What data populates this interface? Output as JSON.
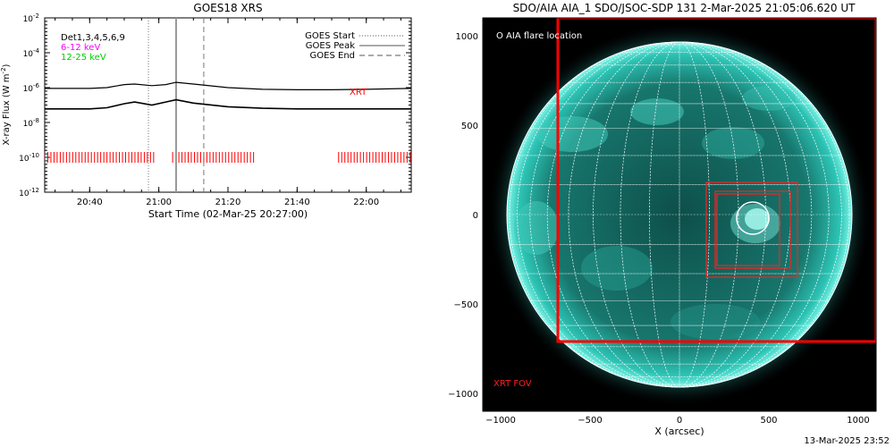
{
  "left_panel": {
    "title": "GOES18 XRS",
    "ylabel_main": "X-ray Flux (W m",
    "ylabel_sup": "-2",
    "ylabel_end": ")",
    "xlabel": "Start Time (02-Mar-25 20:27:00)",
    "legend_left": [
      {
        "text": "Det1,3,4,5,6,9",
        "color": "#000000"
      },
      {
        "text": "6-12 keV",
        "color": "#ff00ff"
      },
      {
        "text": "12-25 keV",
        "color": "#00dd00"
      }
    ],
    "legend_right": [
      {
        "text": "GOES Start",
        "style": "dotted"
      },
      {
        "text": "GOES Peak",
        "style": "solid"
      },
      {
        "text": "GOES End",
        "style": "dashed"
      }
    ],
    "xrt_label": "XRT"
  },
  "right_panel": {
    "title": "SDO/AIA AIA_1 SDO/JSOC-SDP 131  2-Mar-2025 21:05:06.620 UT",
    "flare_legend": "O AIA flare location",
    "xrt_fov_label": "XRT FOV",
    "xlabel": "X (arcsec)",
    "footer": "13-Mar-2025 23:52",
    "accent_color": "#ff0000",
    "disk_color": "#1fa89c"
  },
  "chart_data": [
    {
      "type": "line",
      "title": "GOES18 XRS",
      "xlabel": "Start Time (02-Mar-25 20:27:00)",
      "ylabel": "X-ray Flux (W m^-2)",
      "y_scale": "log",
      "x_tick_labels": [
        "20:40",
        "21:00",
        "21:20",
        "21:40",
        "22:00"
      ],
      "y_tick_labels": [
        "10^-2",
        "10^-4",
        "10^-6",
        "10^-8",
        "10^-10",
        "10^-12"
      ],
      "xlim": [
        "20:27",
        "22:13"
      ],
      "ylim": [
        1e-12,
        0.01
      ],
      "series": [
        {
          "name": "Det1,3,4,5,6,9",
          "x": [
            "20:27",
            "20:40",
            "20:45",
            "20:50",
            "20:53",
            "20:58",
            "21:02",
            "21:05",
            "21:10",
            "21:20",
            "21:30",
            "21:40",
            "21:50",
            "22:00",
            "22:13"
          ],
          "values": [
            9e-07,
            9e-07,
            1e-06,
            1.5e-06,
            1.6e-06,
            1.3e-06,
            1.5e-06,
            2e-06,
            1.6e-06,
            1e-06,
            8e-07,
            7.5e-07,
            7.5e-07,
            8e-07,
            9e-07
          ]
        },
        {
          "x": [
            "20:27",
            "20:40",
            "20:45",
            "20:50",
            "20:53",
            "20:58",
            "21:02",
            "21:05",
            "21:10",
            "21:20",
            "21:30",
            "21:40",
            "21:50",
            "22:00",
            "22:13"
          ],
          "values": [
            6e-08,
            6e-08,
            7e-08,
            1.2e-07,
            1.5e-07,
            1e-07,
            1.5e-07,
            2e-07,
            1.3e-07,
            8e-08,
            6.5e-08,
            6e-08,
            6e-08,
            6e-08,
            6e-08
          ]
        }
      ],
      "markers": {
        "goes_start": "20:57",
        "goes_peak": "21:05",
        "goes_end": "21:13"
      },
      "xrt_coverage": [
        [
          "20:27",
          "20:59"
        ],
        [
          "21:04",
          "21:28"
        ],
        [
          "21:52",
          "22:13"
        ]
      ],
      "xrt_level": 1e-10,
      "grid": false,
      "legend": "top"
    },
    {
      "type": "scatter",
      "title": "SDO/AIA AIA_1 SDO/JSOC-SDP 131  2-Mar-2025 21:05:06.620 UT",
      "xlabel": "X (arcsec)",
      "ylabel": "",
      "x_tick_labels": [
        "-1000",
        "-500",
        "0",
        "500",
        "1000"
      ],
      "y_tick_labels": [
        "1000",
        "500",
        "0",
        "-500",
        "-1000"
      ],
      "xlim": [
        -1100,
        1100
      ],
      "ylim": [
        -1100,
        1100
      ],
      "solar_radius": 965,
      "flare_location": {
        "x": 410,
        "y": -20,
        "r": 90
      },
      "xrt_fov": {
        "x": [
          -680,
          1100
        ],
        "y": [
          -710,
          1100
        ]
      },
      "boxes": [
        {
          "x": [
            150,
            660
          ],
          "y": [
            -350,
            180
          ]
        },
        {
          "x": [
            200,
            620
          ],
          "y": [
            -300,
            130
          ]
        },
        {
          "x": [
            210,
            560
          ],
          "y": [
            -285,
            115
          ]
        }
      ],
      "grid": true
    }
  ]
}
